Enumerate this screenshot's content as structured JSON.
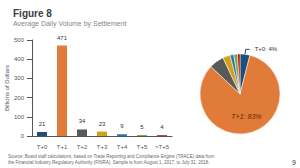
{
  "chart_data": [
    {
      "type": "bar",
      "title": "Figure 8",
      "subtitle": "Average Daily Volume by Settlement",
      "categories": [
        "T+0",
        "T+1",
        "T+2",
        "T+3",
        "T+4",
        "T+5",
        ">T+5"
      ],
      "values": [
        21,
        471,
        34,
        23,
        9,
        5,
        4
      ],
      "colors": [
        "#1f4e79",
        "#e07b39",
        "#595959",
        "#d4a017",
        "#2e74b5",
        "#70ad47",
        "#c00000"
      ],
      "ylabel": "Billions of Dollars",
      "ylim": [
        0,
        500
      ],
      "yticks": [
        0,
        100,
        200,
        300,
        400,
        500
      ],
      "data_labels": true,
      "grid": false,
      "source": "Source: Board staff calculations, based on Trade Reporting and Compliance Engine (TRACE) data from\nthe Financial Industry Regulatory Authority (FINRA). Sample is from August 1, 2017, to July 31, 2018.",
      "annotations": [
        "9"
      ]
    },
    {
      "type": "pie",
      "values": [
        4,
        83,
        6,
        3,
        1.5,
        1.5,
        1
      ],
      "value_labels": [
        "T+0: 4%",
        "T+1: 83%",
        null,
        null,
        null,
        null,
        null
      ],
      "colors": [
        "#1f4e79",
        "#e07b39",
        "#595959",
        "#d4a017",
        "#2e74b5",
        "#70ad47",
        "#c00000"
      ]
    }
  ]
}
